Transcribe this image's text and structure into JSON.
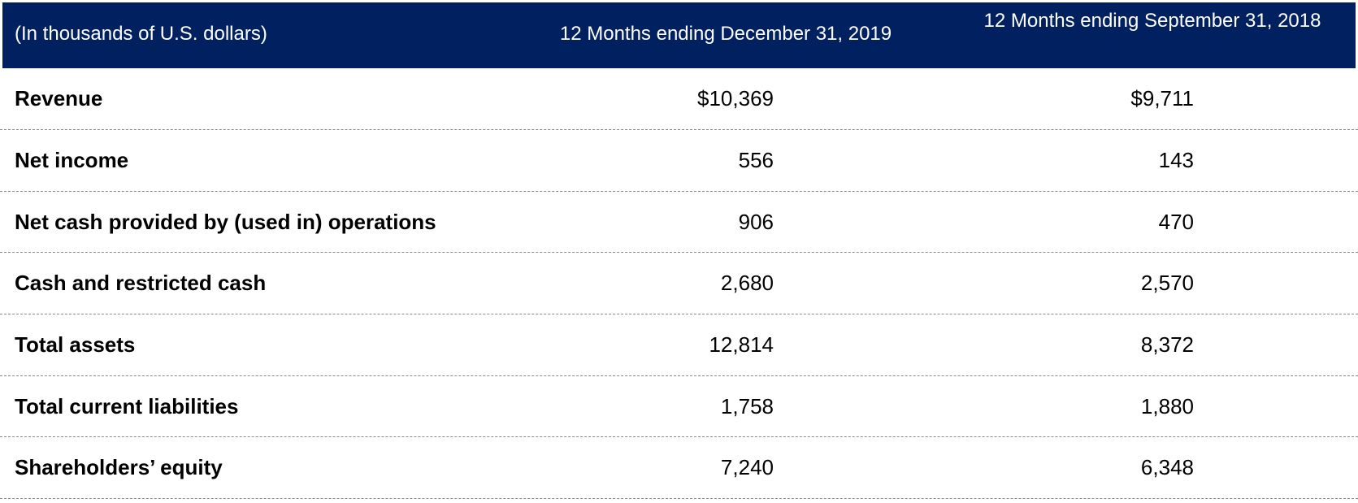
{
  "header": {
    "col0": "(In thousands of U.S. dollars)",
    "col1": "12 Months ending December 31, 2019",
    "col2": "12 Months ending September 31, 2018",
    "background": "#002060"
  },
  "rows": [
    {
      "label": "Revenue",
      "v2019": "$10,369",
      "v2018": "$9,711"
    },
    {
      "label": "Net income",
      "v2019": "556",
      "v2018": "143"
    },
    {
      "label": "Net cash provided by (used in) operations",
      "v2019": "906",
      "v2018": "470"
    },
    {
      "label": "Cash and restricted cash",
      "v2019": "2,680",
      "v2018": "2,570"
    },
    {
      "label": "Total assets",
      "v2019": "12,814",
      "v2018": "8,372"
    },
    {
      "label": "Total current liabilities",
      "v2019": "1,758",
      "v2018": "1,880"
    },
    {
      "label": "Shareholders’ equity",
      "v2019": "7,240",
      "v2018": "6,348"
    }
  ]
}
